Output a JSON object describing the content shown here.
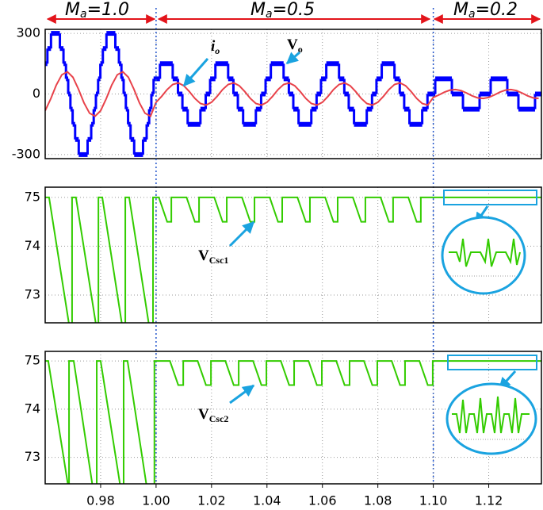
{
  "chart_data": [
    {
      "type": "line",
      "annotations": [
        {
          "main": "M",
          "sub": "a",
          "tail": "=1.0"
        },
        {
          "main": "M",
          "sub": "a",
          "tail": "=0.5"
        },
        {
          "main": "M",
          "sub": "a",
          "tail": "=0.2"
        },
        {
          "main": "i",
          "sub": "o"
        },
        {
          "main": "V",
          "sub": "o"
        }
      ],
      "markers": [
        1,
        1.1
      ],
      "xlim": [
        0.96,
        1.139
      ],
      "ylim": [
        -320,
        320
      ],
      "yticks": [
        300,
        0,
        -300
      ],
      "grid": true,
      "x": [
        0.96,
        0.962,
        0.964,
        0.966,
        0.968,
        0.97,
        0.972,
        0.974,
        0.976,
        0.978,
        0.98,
        0.982,
        0.984,
        0.986,
        0.988,
        0.99,
        0.992,
        0.994,
        0.996,
        0.998,
        1.0,
        1.002,
        1.004,
        1.006,
        1.008,
        1.01,
        1.012,
        1.014,
        1.016,
        1.018,
        1.02,
        1.022,
        1.024,
        1.026,
        1.028,
        1.03,
        1.032,
        1.034,
        1.036,
        1.038,
        1.04,
        1.042,
        1.044,
        1.046,
        1.048,
        1.05,
        1.052,
        1.054,
        1.056,
        1.058,
        1.06,
        1.062,
        1.064,
        1.066,
        1.068,
        1.07,
        1.072,
        1.074,
        1.076,
        1.078,
        1.08,
        1.082,
        1.084,
        1.086,
        1.088,
        1.09,
        1.092,
        1.094,
        1.096,
        1.098,
        1.1,
        1.102,
        1.104,
        1.106,
        1.108,
        1.11,
        1.112,
        1.114,
        1.116,
        1.118,
        1.12,
        1.122,
        1.124,
        1.126,
        1.128,
        1.13,
        1.132,
        1.134,
        1.136,
        1.138
      ],
      "series": [
        {
          "color": "#0000ff",
          "step": true,
          "x": [
            0.96,
            0.9608,
            0.9621,
            0.9653,
            0.9666,
            0.9675,
            0.9683,
            0.9691,
            0.9699,
            0.9708,
            0.9721,
            0.9753,
            0.9766,
            0.9775,
            0.9783,
            0.9791,
            0.9799,
            0.9808,
            0.9821,
            0.9853,
            0.9866,
            0.9875,
            0.9883,
            0.9891,
            0.9899,
            0.9908,
            0.9921,
            0.9953,
            0.9966,
            0.9975,
            0.9983,
            0.9991,
            1.0014,
            1.006,
            1.0079,
            1.0095,
            1.0114,
            1.016,
            1.0179,
            1.0195,
            1.0214,
            1.026,
            1.0279,
            1.0295,
            1.0314,
            1.036,
            1.0379,
            1.0395,
            1.0414,
            1.046,
            1.0479,
            1.0495,
            1.0514,
            1.056,
            1.0579,
            1.0595,
            1.0614,
            1.066,
            1.0679,
            1.0695,
            1.0714,
            1.076,
            1.0779,
            1.0795,
            1.0814,
            1.086,
            1.0879,
            1.0895,
            1.0914,
            1.096,
            1.0979,
            1.1007,
            1.1067,
            1.1107,
            1.1167,
            1.1207,
            1.1267,
            1.1307,
            1.1367
          ],
          "values": [
            150,
            225,
            300,
            225,
            150,
            75,
            0,
            -75,
            -150,
            -225,
            -300,
            -225,
            -150,
            -75,
            0,
            75,
            150,
            225,
            300,
            225,
            150,
            75,
            0,
            -75,
            -150,
            -225,
            -300,
            -225,
            -150,
            -75,
            0,
            75,
            150,
            75,
            0,
            -75,
            -150,
            -75,
            0,
            75,
            150,
            75,
            0,
            -75,
            -150,
            -75,
            0,
            75,
            150,
            75,
            0,
            -75,
            -150,
            -75,
            0,
            75,
            150,
            75,
            0,
            -75,
            -150,
            -75,
            0,
            75,
            150,
            75,
            0,
            -75,
            -150,
            -75,
            0,
            75,
            0,
            -75,
            0,
            75,
            0,
            -75,
            0
          ]
        },
        {
          "color": "#e8424a",
          "values": [
            -83,
            -24,
            44,
            95,
            110,
            83,
            24,
            -44,
            -95,
            -110,
            -83,
            -24,
            44,
            95,
            110,
            83,
            24,
            -44,
            -95,
            -110,
            -41,
            -12,
            22,
            47,
            55,
            41,
            12,
            -22,
            -47,
            -55,
            -41,
            -12,
            22,
            47,
            55,
            41,
            12,
            -22,
            -47,
            -55,
            -41,
            -12,
            22,
            47,
            55,
            41,
            12,
            -22,
            -47,
            -55,
            -41,
            -12,
            22,
            47,
            55,
            41,
            12,
            -22,
            -47,
            -55,
            -41,
            -12,
            22,
            47,
            55,
            41,
            12,
            -22,
            -47,
            -55,
            -17,
            -5,
            9,
            19,
            22,
            17,
            5,
            -9,
            -19,
            -22,
            -17,
            -5,
            9,
            19,
            22,
            17,
            5,
            -9,
            -19,
            -22
          ]
        }
      ]
    },
    {
      "type": "line",
      "annotations": [
        {
          "main": "V",
          "sub": "Csc1"
        }
      ],
      "xlim": [
        0.96,
        1.139
      ],
      "ylim": [
        72.43,
        75.21
      ],
      "yticks": [
        75,
        74,
        73
      ],
      "grid": true,
      "series": [
        {
          "color": "#33cc00",
          "x": [
            0.96,
            0.9614,
            0.9686,
            0.9697,
            0.9697,
            0.9711,
            0.9783,
            0.9792,
            0.9792,
            0.9806,
            0.9877,
            0.9889,
            0.9889,
            0.9903,
            0.9974,
            0.9989,
            0.9989,
            1.001,
            1.004,
            1.0055,
            1.0055,
            1.011,
            1.014,
            1.0155,
            1.0155,
            1.021,
            1.024,
            1.0255,
            1.0255,
            1.031,
            1.034,
            1.0355,
            1.0355,
            1.041,
            1.044,
            1.0455,
            1.0455,
            1.051,
            1.054,
            1.0555,
            1.0555,
            1.061,
            1.064,
            1.0655,
            1.0655,
            1.071,
            1.074,
            1.0755,
            1.0755,
            1.081,
            1.084,
            1.0855,
            1.0855,
            1.091,
            1.094,
            1.0955,
            1.0955,
            1.139
          ],
          "values": [
            75,
            75,
            72.4,
            72.4,
            75,
            75,
            72.4,
            72.4,
            75,
            75,
            72.4,
            72.4,
            75,
            75,
            72.4,
            72.4,
            75,
            75,
            74.5,
            74.5,
            75,
            75,
            74.5,
            74.5,
            75,
            75,
            74.5,
            74.5,
            75,
            75,
            74.5,
            74.5,
            75,
            75,
            74.5,
            74.5,
            75,
            75,
            74.5,
            74.5,
            75,
            75,
            74.5,
            74.5,
            75,
            75,
            74.5,
            74.5,
            75,
            75,
            74.5,
            74.5,
            75,
            75,
            74.5,
            74.5,
            75,
            75
          ]
        }
      ]
    },
    {
      "type": "line",
      "annotations": [
        {
          "main": "V",
          "sub": "Csc2"
        }
      ],
      "xlim": [
        0.96,
        1.139
      ],
      "ylim": [
        72.45,
        75.2
      ],
      "yticks": [
        75,
        74,
        73
      ],
      "grid": true,
      "xticks": [
        0.98,
        {
          "value": 1,
          "label": "1.00"
        },
        1.02,
        1.04,
        1.06,
        1.08,
        {
          "value": 1.1,
          "label": "1.10"
        },
        1.12
      ],
      "series": [
        {
          "color": "#33cc00",
          "x": [
            0.96,
            0.9611,
            0.9683,
            0.9686,
            0.9686,
            0.9703,
            0.9771,
            0.9786,
            0.9786,
            0.98,
            0.9871,
            0.9883,
            0.9883,
            0.9897,
            0.9966,
            0.9994,
            0.9994,
            1.005,
            1.008,
            1.0098,
            1.0098,
            1.015,
            1.018,
            1.0198,
            1.0198,
            1.025,
            1.028,
            1.0298,
            1.0298,
            1.035,
            1.038,
            1.0398,
            1.0398,
            1.045,
            1.048,
            1.0498,
            1.0498,
            1.055,
            1.058,
            1.0598,
            1.0598,
            1.065,
            1.068,
            1.0698,
            1.0698,
            1.075,
            1.078,
            1.0798,
            1.0798,
            1.085,
            1.088,
            1.0898,
            1.0898,
            1.095,
            1.098,
            1.0998,
            1.0998,
            1.139
          ],
          "values": [
            75,
            75,
            72.4,
            72.4,
            75,
            75,
            72.4,
            72.4,
            75,
            75,
            72.4,
            72.4,
            75,
            75,
            72.4,
            72.4,
            75,
            75,
            74.5,
            74.5,
            75,
            75,
            74.5,
            74.5,
            75,
            75,
            74.5,
            74.5,
            75,
            75,
            74.5,
            74.5,
            75,
            75,
            74.5,
            74.5,
            75,
            75,
            74.5,
            74.5,
            75,
            75,
            74.5,
            74.5,
            75,
            75,
            74.5,
            74.5,
            75,
            75,
            74.5,
            74.5,
            75,
            75,
            74.5,
            74.5,
            75,
            75
          ]
        }
      ]
    }
  ]
}
